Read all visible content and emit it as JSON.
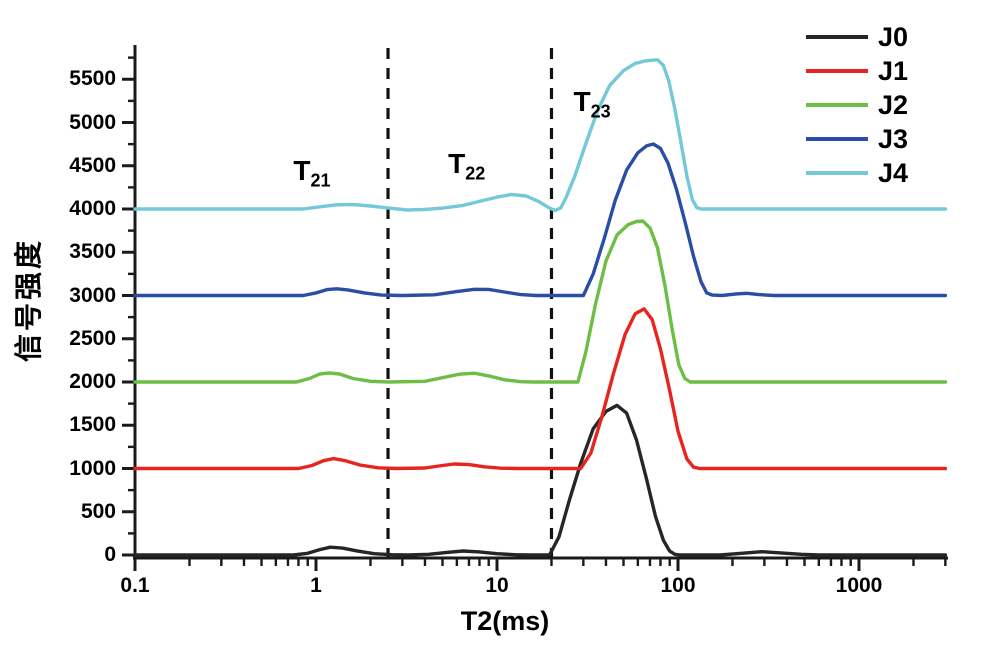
{
  "page": {
    "background": "#ffffff"
  },
  "axes": {
    "x": {
      "label": "T2(ms)",
      "scale": "log",
      "min": 0.1,
      "max": 3000,
      "major_ticks": [
        0.1,
        1,
        10,
        100,
        1000
      ],
      "tick_labels": [
        "0.1",
        "1",
        "10",
        "100",
        "1000"
      ]
    },
    "y": {
      "label": "信号强度",
      "min": 0,
      "max": 5875,
      "major_step": 500,
      "minor_step": 250,
      "tick_values": [
        0,
        500,
        1000,
        1500,
        2000,
        2500,
        3000,
        3500,
        4000,
        4500,
        5000,
        5500
      ],
      "tick_labels": [
        "0",
        "500",
        "1000",
        "1500",
        "2000",
        "2500",
        "3000",
        "3500",
        "4000",
        "4500",
        "5000",
        "5500"
      ]
    }
  },
  "chart_data": {
    "type": "line",
    "title": "",
    "xlabel": "T2(ms)",
    "ylabel": "信号强度",
    "x_scale": "log",
    "xlim": [
      0.1,
      3000
    ],
    "ylim": [
      0,
      5875
    ],
    "grid": false,
    "legend_position": "top-right",
    "axis_color": "#1a1a1a",
    "annotations": {
      "dividers_t2_ms": [
        2.5,
        20
      ],
      "regions": [
        {
          "main": "T",
          "sub": "21",
          "t2_ms": 0.95,
          "y": 4440
        },
        {
          "main": "T",
          "sub": "22",
          "t2_ms": 6.8,
          "y": 4520
        },
        {
          "main": "T",
          "sub": "23",
          "t2_ms": 33.5,
          "y": 5240
        }
      ]
    },
    "series": [
      {
        "name": "J0",
        "color": "#262626",
        "baseline": 0,
        "points": [
          [
            0.1,
            0
          ],
          [
            0.75,
            0
          ],
          [
            0.9,
            20
          ],
          [
            1.05,
            62
          ],
          [
            1.2,
            90
          ],
          [
            1.4,
            80
          ],
          [
            1.7,
            45
          ],
          [
            2.1,
            15
          ],
          [
            2.6,
            3
          ],
          [
            3.2,
            0
          ],
          [
            4.2,
            8
          ],
          [
            5.2,
            28
          ],
          [
            6.5,
            46
          ],
          [
            8,
            36
          ],
          [
            10,
            15
          ],
          [
            12.5,
            4
          ],
          [
            15,
            0
          ],
          [
            19.5,
            0
          ],
          [
            22,
            210
          ],
          [
            25,
            620
          ],
          [
            29,
            1060
          ],
          [
            34,
            1460
          ],
          [
            40,
            1660
          ],
          [
            46,
            1730
          ],
          [
            52,
            1640
          ],
          [
            59,
            1330
          ],
          [
            67,
            880
          ],
          [
            75,
            450
          ],
          [
            83,
            170
          ],
          [
            90,
            45
          ],
          [
            96,
            8
          ],
          [
            103,
            0
          ],
          [
            170,
            0
          ],
          [
            220,
            18
          ],
          [
            290,
            38
          ],
          [
            370,
            24
          ],
          [
            480,
            8
          ],
          [
            600,
            0
          ],
          [
            3000,
            0
          ]
        ]
      },
      {
        "name": "J1",
        "color": "#e82420",
        "baseline": 1000,
        "points": [
          [
            0.1,
            1000
          ],
          [
            0.8,
            1000
          ],
          [
            0.95,
            1035
          ],
          [
            1.1,
            1090
          ],
          [
            1.25,
            1115
          ],
          [
            1.45,
            1090
          ],
          [
            1.75,
            1040
          ],
          [
            2.2,
            1008
          ],
          [
            2.8,
            1000
          ],
          [
            4,
            1006
          ],
          [
            5,
            1035
          ],
          [
            5.8,
            1052
          ],
          [
            7,
            1045
          ],
          [
            8.5,
            1020
          ],
          [
            10.5,
            1004
          ],
          [
            13,
            1000
          ],
          [
            29,
            1000
          ],
          [
            33,
            1180
          ],
          [
            38,
            1600
          ],
          [
            44,
            2100
          ],
          [
            51,
            2550
          ],
          [
            58,
            2790
          ],
          [
            65,
            2845
          ],
          [
            72,
            2720
          ],
          [
            80,
            2380
          ],
          [
            90,
            1900
          ],
          [
            100,
            1430
          ],
          [
            112,
            1110
          ],
          [
            122,
            1015
          ],
          [
            132,
            1000
          ],
          [
            3000,
            1000
          ]
        ]
      },
      {
        "name": "J2",
        "color": "#6cbe45",
        "baseline": 2000,
        "points": [
          [
            0.1,
            2000
          ],
          [
            0.78,
            2000
          ],
          [
            0.92,
            2040
          ],
          [
            1.05,
            2092
          ],
          [
            1.18,
            2105
          ],
          [
            1.35,
            2092
          ],
          [
            1.6,
            2040
          ],
          [
            2,
            2008
          ],
          [
            2.5,
            2000
          ],
          [
            4,
            2008
          ],
          [
            5,
            2050
          ],
          [
            6.2,
            2090
          ],
          [
            7.5,
            2102
          ],
          [
            9,
            2070
          ],
          [
            11,
            2025
          ],
          [
            13.5,
            2004
          ],
          [
            16,
            2000
          ],
          [
            28,
            2000
          ],
          [
            31,
            2350
          ],
          [
            35,
            2900
          ],
          [
            40,
            3400
          ],
          [
            46,
            3700
          ],
          [
            53,
            3820
          ],
          [
            59,
            3856
          ],
          [
            64,
            3860
          ],
          [
            70,
            3780
          ],
          [
            77,
            3550
          ],
          [
            85,
            3100
          ],
          [
            93,
            2600
          ],
          [
            101,
            2200
          ],
          [
            109,
            2040
          ],
          [
            117,
            2000
          ],
          [
            3000,
            2000
          ]
        ]
      },
      {
        "name": "J3",
        "color": "#2b4ea5",
        "baseline": 3000,
        "points": [
          [
            0.1,
            3000
          ],
          [
            0.85,
            3000
          ],
          [
            1,
            3030
          ],
          [
            1.15,
            3068
          ],
          [
            1.3,
            3078
          ],
          [
            1.5,
            3065
          ],
          [
            1.85,
            3030
          ],
          [
            2.3,
            3005
          ],
          [
            3,
            3000
          ],
          [
            4.5,
            3008
          ],
          [
            6,
            3045
          ],
          [
            7.5,
            3072
          ],
          [
            9,
            3070
          ],
          [
            11,
            3040
          ],
          [
            13.5,
            3010
          ],
          [
            16.5,
            3000
          ],
          [
            30,
            3000
          ],
          [
            34,
            3250
          ],
          [
            39,
            3650
          ],
          [
            45,
            4100
          ],
          [
            52,
            4450
          ],
          [
            60,
            4650
          ],
          [
            67,
            4730
          ],
          [
            73,
            4752
          ],
          [
            80,
            4700
          ],
          [
            88,
            4530
          ],
          [
            98,
            4230
          ],
          [
            110,
            3830
          ],
          [
            122,
            3450
          ],
          [
            134,
            3160
          ],
          [
            144,
            3030
          ],
          [
            155,
            3005
          ],
          [
            175,
            3000
          ],
          [
            210,
            3018
          ],
          [
            240,
            3026
          ],
          [
            280,
            3010
          ],
          [
            340,
            3000
          ],
          [
            3000,
            3000
          ]
        ]
      },
      {
        "name": "J4",
        "color": "#74c8d8",
        "baseline": 4000,
        "points": [
          [
            0.1,
            4000
          ],
          [
            0.85,
            4000
          ],
          [
            1.05,
            4025
          ],
          [
            1.3,
            4048
          ],
          [
            1.6,
            4052
          ],
          [
            2,
            4035
          ],
          [
            2.6,
            4008
          ],
          [
            3.2,
            3988
          ],
          [
            4,
            3995
          ],
          [
            5,
            4010
          ],
          [
            6.5,
            4042
          ],
          [
            8,
            4088
          ],
          [
            10,
            4138
          ],
          [
            12,
            4168
          ],
          [
            14.5,
            4150
          ],
          [
            17,
            4085
          ],
          [
            19.5,
            4010
          ],
          [
            21,
            3984
          ],
          [
            22.5,
            4012
          ],
          [
            24,
            4125
          ],
          [
            27,
            4390
          ],
          [
            31,
            4760
          ],
          [
            36,
            5140
          ],
          [
            42,
            5430
          ],
          [
            50,
            5600
          ],
          [
            58,
            5682
          ],
          [
            66,
            5712
          ],
          [
            72,
            5720
          ],
          [
            77,
            5725
          ],
          [
            83,
            5660
          ],
          [
            89,
            5480
          ],
          [
            96,
            5160
          ],
          [
            104,
            4760
          ],
          [
            112,
            4380
          ],
          [
            120,
            4110
          ],
          [
            127,
            4016
          ],
          [
            134,
            4000
          ],
          [
            3000,
            4000
          ]
        ]
      }
    ]
  }
}
